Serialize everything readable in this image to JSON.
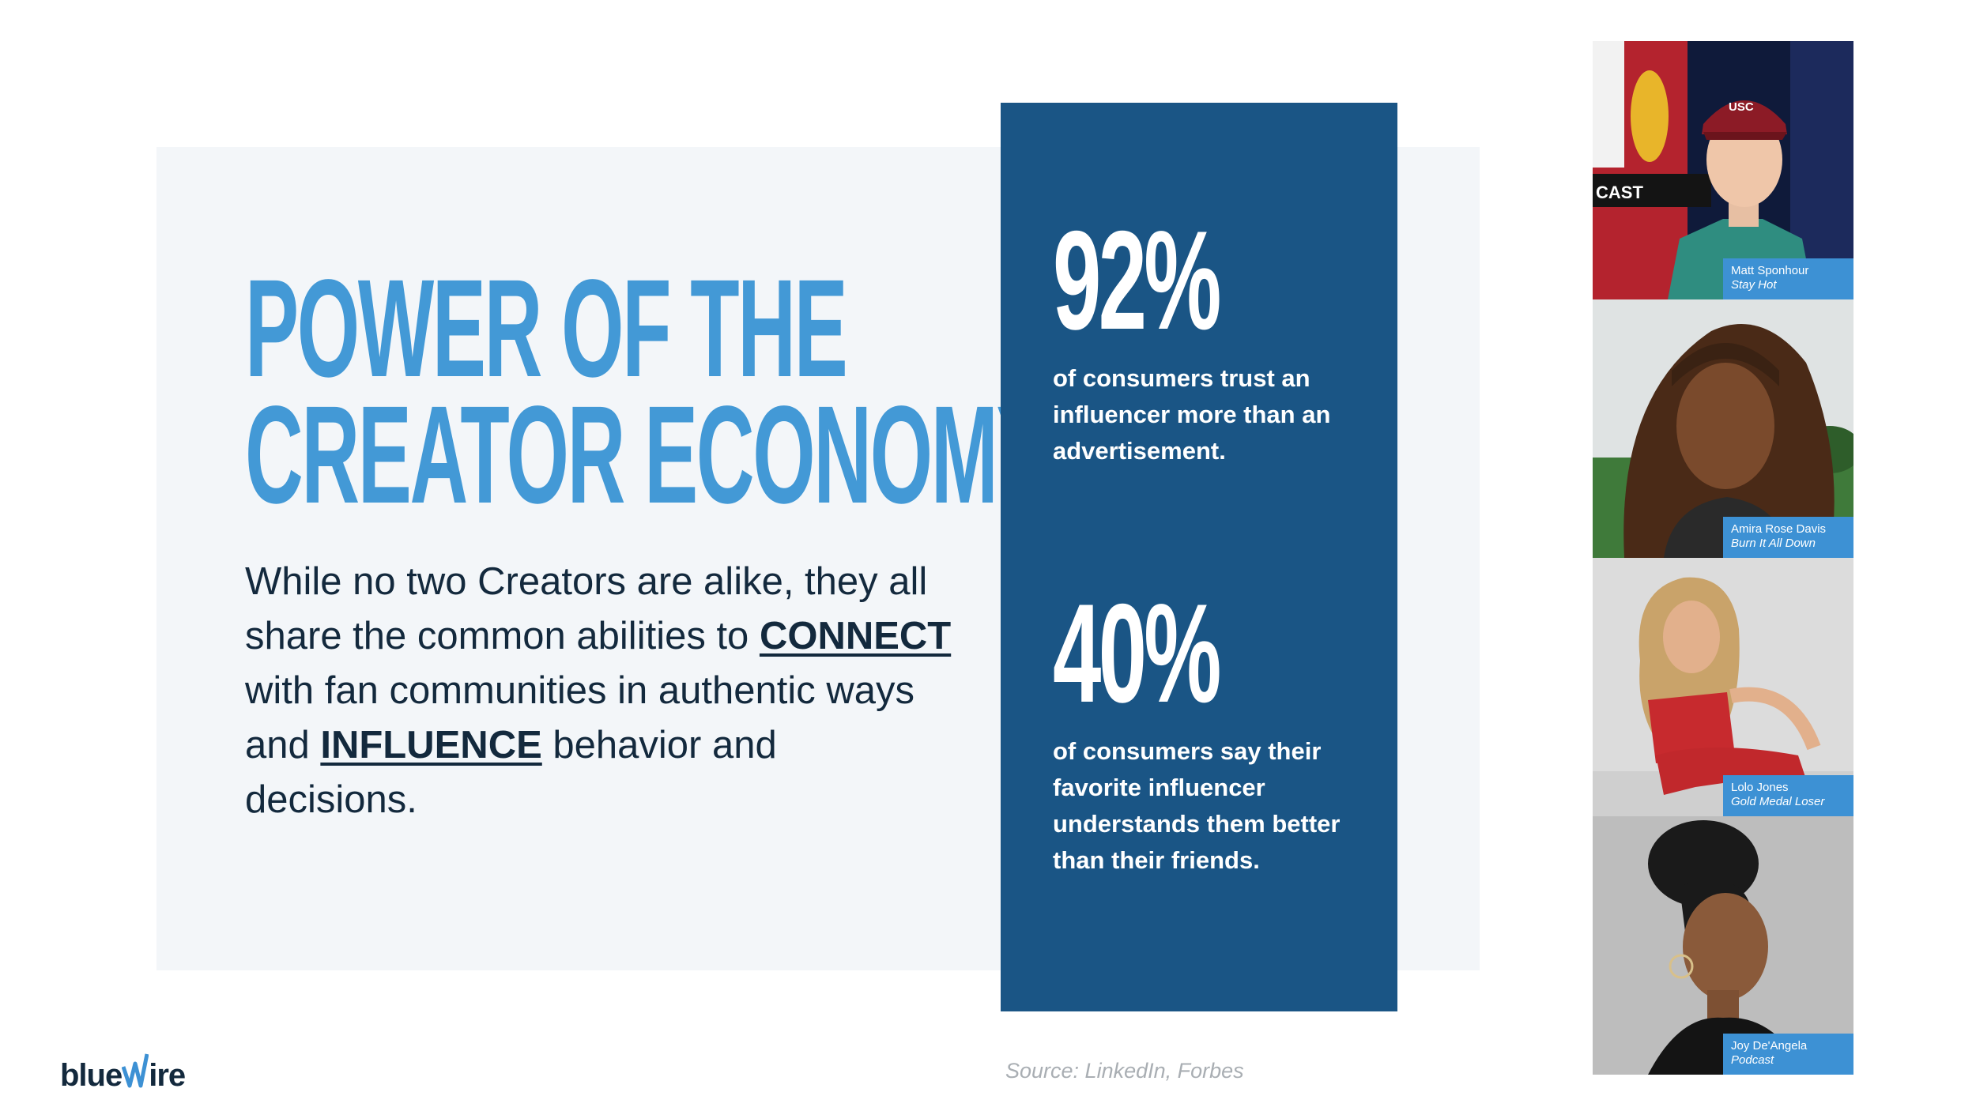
{
  "title": {
    "line1": "POWER OF THE",
    "line2": "CREATOR ECONOMY"
  },
  "body": {
    "part1": "While no two Creators are alike, they all share the common abilities to ",
    "keyword1": "CONNECT",
    "part2": " with fan communities in authentic ways and ",
    "keyword2": "INFLUENCE",
    "part3": " behavior and decisions."
  },
  "stats": [
    {
      "value": "92%",
      "description": "of consumers trust an influencer more than an advertisement."
    },
    {
      "value": "40%",
      "description": "of consumers say their favorite influencer understands them better than their friends."
    }
  ],
  "creators": [
    {
      "name": "Matt Sponhour",
      "show": "Stay Hot",
      "logo_text": "USC",
      "sign_text": "CAST"
    },
    {
      "name": "Amira Rose Davis",
      "show": "Burn It All Down"
    },
    {
      "name": "Lolo Jones",
      "show": "Gold Medal Loser"
    },
    {
      "name": "Joy De'Angela",
      "show": "Podcast"
    }
  ],
  "brand": {
    "logo_left": "blue",
    "logo_right": "ire"
  },
  "source": "Source: LinkedIn, Forbes",
  "colors": {
    "title_blue": "#4399d6",
    "stats_box": "#1a5585",
    "caption_blue": "#3d91d4",
    "body_text": "#13293d",
    "panel_bg": "#f3f6f9"
  }
}
